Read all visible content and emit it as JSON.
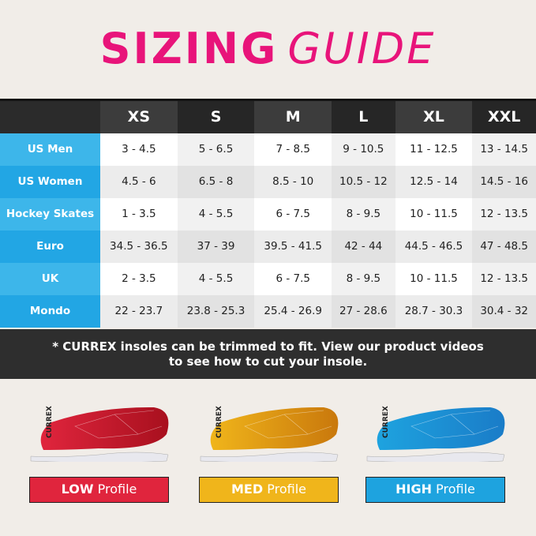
{
  "title": {
    "bold": "SIZING",
    "light": "GUIDE"
  },
  "table": {
    "columns": [
      "XS",
      "S",
      "M",
      "L",
      "XL",
      "XXL"
    ],
    "rows": [
      {
        "label": "US Men",
        "values": [
          "3 - 4.5",
          "5 - 6.5",
          "7 - 8.5",
          "9 - 10.5",
          "11 - 12.5",
          "13 - 14.5"
        ]
      },
      {
        "label": "US Women",
        "values": [
          "4.5 - 6",
          "6.5 - 8",
          "8.5 - 10",
          "10.5 - 12",
          "12.5 - 14",
          "14.5 - 16"
        ]
      },
      {
        "label": "Hockey Skates",
        "values": [
          "1 - 3.5",
          "4 - 5.5",
          "6 - 7.5",
          "8 - 9.5",
          "10 - 11.5",
          "12 - 13.5"
        ]
      },
      {
        "label": "Euro",
        "values": [
          "34.5 - 36.5",
          "37 - 39",
          "39.5 - 41.5",
          "42 - 44",
          "44.5 - 46.5",
          "47 - 48.5"
        ]
      },
      {
        "label": "UK",
        "values": [
          "2 - 3.5",
          "4 - 5.5",
          "6 - 7.5",
          "8 - 9.5",
          "10 - 11.5",
          "12 - 13.5"
        ]
      },
      {
        "label": "Mondo",
        "values": [
          "22 - 23.7",
          "23.8 - 25.3",
          "25.4 - 26.9",
          "27 - 28.6",
          "28.7 - 30.3",
          "30.4 - 32"
        ]
      }
    ]
  },
  "note": {
    "line1": "* CURREX insoles can be trimmed to fit. View our product videos",
    "line2": "to see how to cut your insole."
  },
  "brand_logo": "CURREX",
  "profiles": [
    {
      "bold": "LOW",
      "text": "Profile",
      "color": "#e0253d",
      "color2": "#a8101e"
    },
    {
      "bold": "MED",
      "text": "Profile",
      "color": "#f0b51b",
      "color2": "#c9780c"
    },
    {
      "bold": "HIGH",
      "text": "Profile",
      "color": "#1ea3df",
      "color2": "#1a7cc8"
    }
  ]
}
